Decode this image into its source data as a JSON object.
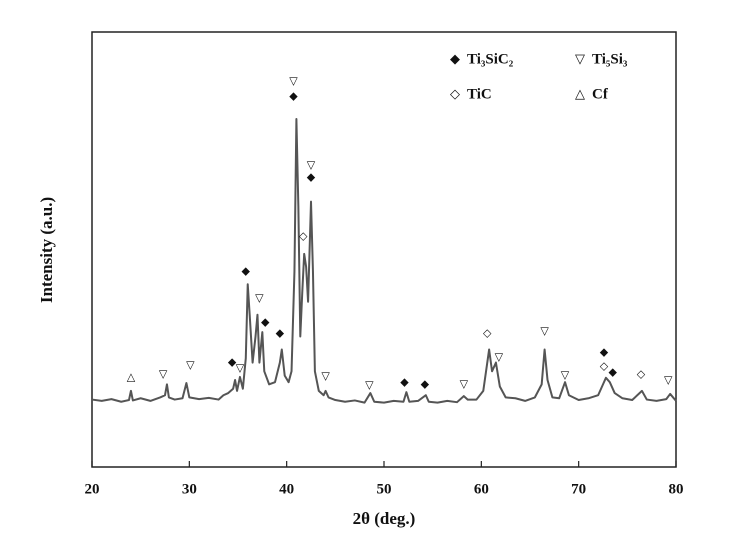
{
  "chart_data": {
    "type": "line",
    "xlabel": "2θ (deg.)",
    "ylabel": "Intensity (a.u.)",
    "xlim": [
      20,
      80
    ],
    "xticks": [
      20,
      30,
      40,
      50,
      60,
      70,
      80
    ],
    "ylim": [
      0,
      100
    ],
    "color": "#555555",
    "legend": "upper right",
    "legend_items": [
      {
        "symbol": "◆",
        "label": "Ti₃SiC₂"
      },
      {
        "symbol": "▽",
        "label": "Ti₅Si₃"
      },
      {
        "symbol": "◇",
        "label": "TiC"
      },
      {
        "symbol": "△",
        "label": "Cf"
      }
    ],
    "x": [
      20,
      21,
      22,
      23,
      23.8,
      24,
      24.2,
      25,
      26,
      27,
      27.5,
      27.7,
      27.9,
      28.5,
      29.3,
      29.7,
      30,
      31,
      32,
      33,
      33.5,
      34,
      34.5,
      34.7,
      34.9,
      35.2,
      35.5,
      35.8,
      36,
      36.2,
      36.5,
      36.8,
      37,
      37.2,
      37.5,
      37.7,
      38.2,
      38.8,
      39.3,
      39.5,
      39.8,
      40.2,
      40.5,
      40.8,
      41,
      41.2,
      41.4,
      41.6,
      41.8,
      42,
      42.2,
      42.5,
      42.7,
      42.9,
      43.3,
      43.8,
      44,
      44.3,
      45,
      46,
      47,
      48,
      48.6,
      49,
      50,
      51,
      52,
      52.3,
      52.6,
      53.5,
      54.3,
      54.6,
      55.5,
      56.5,
      57.5,
      58.2,
      58.6,
      59.5,
      60.2,
      60.8,
      61.1,
      61.5,
      61.9,
      62.5,
      63.5,
      64.5,
      65.5,
      66.2,
      66.5,
      66.8,
      67.3,
      68,
      68.6,
      69,
      70,
      71,
      72,
      72.5,
      72.8,
      73.2,
      73.7,
      74.5,
      75.5,
      76.5,
      77,
      78,
      79,
      79.4,
      80
    ],
    "values": [
      15.5,
      15.2,
      15.6,
      15.0,
      15.4,
      17.5,
      15.3,
      15.8,
      15.2,
      16.0,
      16.5,
      19.0,
      16.0,
      15.5,
      15.8,
      19.3,
      16.0,
      15.6,
      15.9,
      15.5,
      16.5,
      17.0,
      18.0,
      20.0,
      17.5,
      20.7,
      18.0,
      25.0,
      42.0,
      35.0,
      24.0,
      30.0,
      35.0,
      24.0,
      31.0,
      22.0,
      19.0,
      19.5,
      24.0,
      27.0,
      21.0,
      19.5,
      22.0,
      45.0,
      80.0,
      60.0,
      30.0,
      40.0,
      49.0,
      46.0,
      38.0,
      61.0,
      45.0,
      22.0,
      17.5,
      16.5,
      17.5,
      16.0,
      15.4,
      15.0,
      15.3,
      14.8,
      17.0,
      15.0,
      14.8,
      15.2,
      15.0,
      17.2,
      15.0,
      15.2,
      16.5,
      15.0,
      14.8,
      15.2,
      14.9,
      16.3,
      15.5,
      15.5,
      17.5,
      27.0,
      22.0,
      24.0,
      18.5,
      16.0,
      15.8,
      15.2,
      16.0,
      19.0,
      27.0,
      20.0,
      16.0,
      15.8,
      19.5,
      16.5,
      15.4,
      15.8,
      16.5,
      19.0,
      20.5,
      19.5,
      17.0,
      15.8,
      15.4,
      17.5,
      15.5,
      15.2,
      15.6,
      16.8,
      15.2
    ],
    "annotations": [
      {
        "x": 24,
        "y": 20.5,
        "text": "△"
      },
      {
        "x": 27.3,
        "y": 21.1,
        "text": "▽"
      },
      {
        "x": 30.1,
        "y": 23.2,
        "text": "▽"
      },
      {
        "x": 34.4,
        "y": 23.9,
        "text": "◆"
      },
      {
        "x": 35.2,
        "y": 22.5,
        "text": "▽"
      },
      {
        "x": 35.8,
        "y": 44.8,
        "text": "◆"
      },
      {
        "x": 37.2,
        "y": 38.6,
        "text": "▽"
      },
      {
        "x": 37.8,
        "y": 33.1,
        "text": "◆"
      },
      {
        "x": 39.3,
        "y": 30.6,
        "text": "◆"
      },
      {
        "x": 40.7,
        "y": 88.5,
        "text": "▽"
      },
      {
        "x": 40.7,
        "y": 85.1,
        "text": "◆"
      },
      {
        "x": 42.5,
        "y": 69.2,
        "text": "▽"
      },
      {
        "x": 42.5,
        "y": 66.4,
        "text": "◆"
      },
      {
        "x": 41.7,
        "y": 52.9,
        "text": "◇"
      },
      {
        "x": 44,
        "y": 20.7,
        "text": "▽"
      },
      {
        "x": 48.5,
        "y": 18.6,
        "text": "▽"
      },
      {
        "x": 52.1,
        "y": 19.3,
        "text": "◆"
      },
      {
        "x": 54.2,
        "y": 18.9,
        "text": "◆"
      },
      {
        "x": 58.2,
        "y": 18.9,
        "text": "▽"
      },
      {
        "x": 60.6,
        "y": 30.6,
        "text": "◇"
      },
      {
        "x": 61.8,
        "y": 25.1,
        "text": "▽"
      },
      {
        "x": 66.5,
        "y": 31.0,
        "text": "▽"
      },
      {
        "x": 68.6,
        "y": 20.9,
        "text": "▽"
      },
      {
        "x": 72.6,
        "y": 26.2,
        "text": "◆"
      },
      {
        "x": 72.6,
        "y": 23.0,
        "text": "◇"
      },
      {
        "x": 73.5,
        "y": 21.6,
        "text": "◆"
      },
      {
        "x": 76.4,
        "y": 21.1,
        "text": "◇"
      },
      {
        "x": 79.2,
        "y": 19.8,
        "text": "▽"
      }
    ]
  }
}
